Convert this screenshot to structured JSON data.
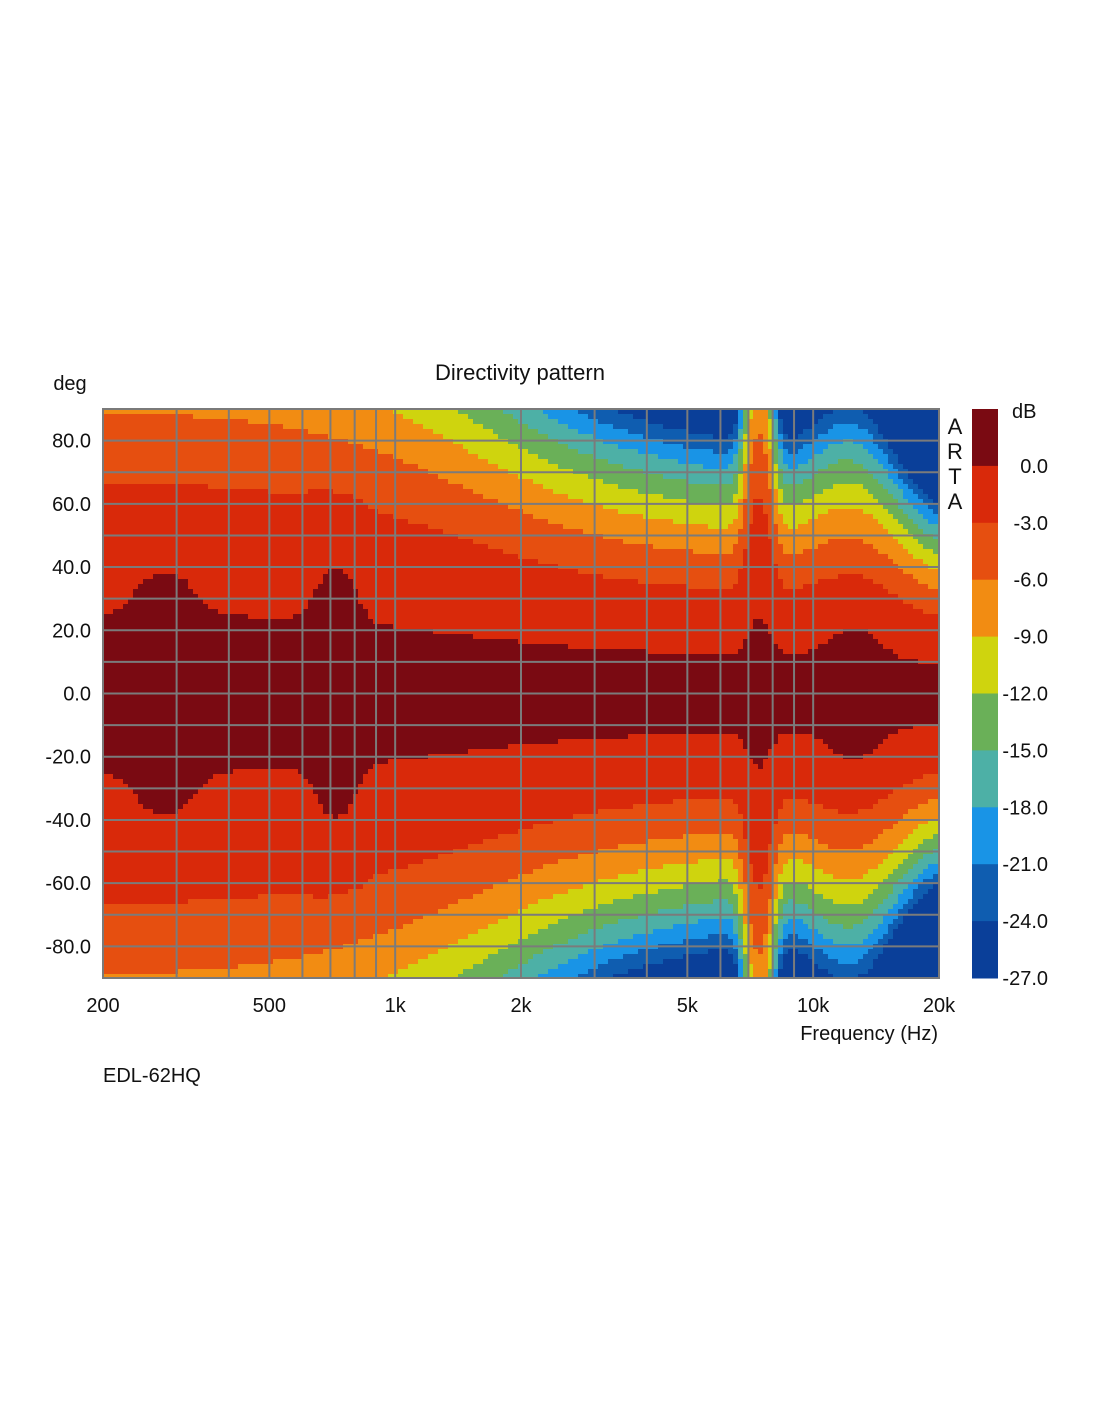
{
  "chart_data": {
    "type": "heatmap",
    "title": "Directivity pattern",
    "xlabel": "Frequency (Hz)",
    "ylabel": "deg",
    "x_scale": "log",
    "xlim": [
      200,
      20000
    ],
    "ylim": [
      90,
      -90
    ],
    "x_ticks": [
      {
        "value": 200,
        "label": "200"
      },
      {
        "value": 500,
        "label": "500"
      },
      {
        "value": 1000,
        "label": "1k"
      },
      {
        "value": 2000,
        "label": "2k"
      },
      {
        "value": 5000,
        "label": "5k"
      },
      {
        "value": 10000,
        "label": "10k"
      },
      {
        "value": 20000,
        "label": "20k"
      }
    ],
    "x_gridlines": [
      300,
      400,
      500,
      600,
      700,
      800,
      900,
      1000,
      2000,
      3000,
      4000,
      5000,
      6000,
      7000,
      8000,
      9000,
      10000
    ],
    "y_ticks": [
      {
        "value": -80,
        "label": "-80.0"
      },
      {
        "value": -60,
        "label": "-60.0"
      },
      {
        "value": -40,
        "label": "-40.0"
      },
      {
        "value": -20,
        "label": "-20.0"
      },
      {
        "value": 0,
        "label": "0.0"
      },
      {
        "value": 20,
        "label": "20.0"
      },
      {
        "value": 40,
        "label": "40.0"
      },
      {
        "value": 60,
        "label": "60.0"
      },
      {
        "value": 80,
        "label": "80.0"
      }
    ],
    "y_gridlines": [
      -90,
      -80,
      -70,
      -60,
      -50,
      -40,
      -30,
      -20,
      -10,
      0,
      10,
      20,
      30,
      40,
      50,
      60,
      70,
      80,
      90
    ],
    "grid": true,
    "colorbar": {
      "unit": "dB",
      "levels": [
        {
          "label": "0.0",
          "color": "#7a0a12"
        },
        {
          "label": "-3.0",
          "color": "#d9290a"
        },
        {
          "label": "-6.0",
          "color": "#e64f10"
        },
        {
          "label": "-9.0",
          "color": "#f28c12"
        },
        {
          "label": "-12.0",
          "color": "#cfd40e"
        },
        {
          "label": "-15.0",
          "color": "#6ab058"
        },
        {
          "label": "-18.0",
          "color": "#4db0a6"
        },
        {
          "label": "-21.0",
          "color": "#1994e6"
        },
        {
          "label": "-24.0",
          "color": "#0f5db0"
        },
        {
          "label": "-27.0",
          "color": "#0a3f99"
        }
      ]
    },
    "watermark": "ARTA",
    "footnote": "EDL-62HQ"
  }
}
